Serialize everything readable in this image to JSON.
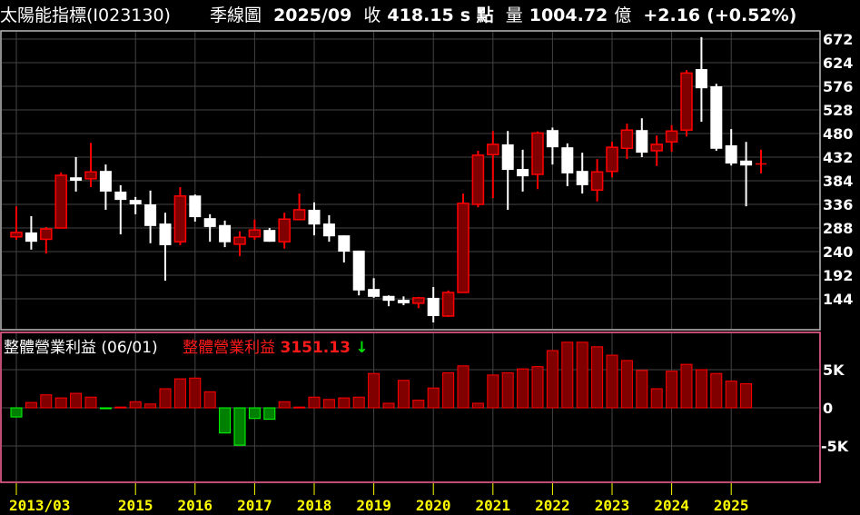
{
  "header": {
    "index_name": "太陽能指標(I023130)",
    "period_type": "季線圖",
    "date": "2025/09",
    "close_label": "收",
    "close_value": "418.15",
    "close_unit": "s 點",
    "volume_label": "量",
    "volume_value": "1004.72",
    "volume_unit": "億",
    "change": "+2.16",
    "change_pct": "(+0.52%)"
  },
  "sub_legend": {
    "title": "整體營業利益",
    "date": "(06/01)",
    "series_label": "整體營業利益",
    "series_value": "3151.13",
    "trend_icon": "arrow-down-icon"
  },
  "colors": {
    "background": "#000000",
    "up_border": "#ff0000",
    "up_fill": "#800000",
    "down": "#ffffff",
    "negative_border": "#00ff00",
    "negative_fill": "#008000",
    "grid": "#444444",
    "year_label": "#ffff00",
    "sub_border": "#ff6699"
  },
  "chart_data": [
    {
      "type": "candlestick",
      "period": "quarterly",
      "first_period": "2013/03",
      "last_period": "2025/09",
      "y_ticks": [
        672,
        624,
        576,
        528,
        480,
        432,
        384,
        336,
        288,
        240,
        192,
        144
      ],
      "ylim": [
        100,
        690
      ],
      "x_tick_labels": [
        "2013/03",
        "2015",
        "2016",
        "2017",
        "2018",
        "2019",
        "2020",
        "2021",
        "2022",
        "2023",
        "2024",
        "2025"
      ],
      "x_tick_indices": [
        0,
        8,
        12,
        16,
        20,
        24,
        28,
        32,
        36,
        40,
        44,
        48
      ],
      "grid": true,
      "ohlc": [
        [
          270,
          332,
          264,
          279
        ],
        [
          279,
          312,
          244,
          260
        ],
        [
          265,
          290,
          236,
          286
        ],
        [
          288,
          401,
          288,
          395
        ],
        [
          391,
          432,
          362,
          384
        ],
        [
          388,
          461,
          371,
          402
        ],
        [
          404,
          417,
          325,
          362
        ],
        [
          362,
          375,
          275,
          345
        ],
        [
          345,
          351,
          316,
          336
        ],
        [
          336,
          364,
          257,
          292
        ],
        [
          297,
          319,
          181,
          253
        ],
        [
          260,
          371,
          253,
          353
        ],
        [
          354,
          356,
          301,
          310
        ],
        [
          308,
          316,
          260,
          290
        ],
        [
          294,
          303,
          249,
          259
        ],
        [
          255,
          281,
          231,
          269
        ],
        [
          270,
          305,
          264,
          284
        ],
        [
          284,
          288,
          260,
          260
        ],
        [
          260,
          319,
          246,
          306
        ],
        [
          305,
          358,
          305,
          325
        ],
        [
          325,
          340,
          273,
          295
        ],
        [
          297,
          314,
          260,
          271
        ],
        [
          273,
          273,
          218,
          240
        ],
        [
          242,
          242,
          151,
          161
        ],
        [
          164,
          186,
          146,
          148
        ],
        [
          150,
          151,
          129,
          140
        ],
        [
          142,
          149,
          131,
          135
        ],
        [
          135,
          148,
          125,
          146
        ],
        [
          146,
          168,
          96,
          109
        ],
        [
          109,
          161,
          107,
          157
        ],
        [
          157,
          358,
          157,
          338
        ],
        [
          336,
          445,
          330,
          436
        ],
        [
          437,
          485,
          349,
          458
        ],
        [
          458,
          485,
          325,
          406
        ],
        [
          408,
          447,
          362,
          393
        ],
        [
          397,
          484,
          367,
          481
        ],
        [
          487,
          492,
          417,
          452
        ],
        [
          452,
          460,
          373,
          399
        ],
        [
          404,
          441,
          358,
          375
        ],
        [
          365,
          428,
          342,
          402
        ],
        [
          403,
          463,
          391,
          452
        ],
        [
          450,
          500,
          428,
          487
        ],
        [
          487,
          511,
          432,
          441
        ],
        [
          445,
          476,
          414,
          458
        ],
        [
          463,
          497,
          443,
          485
        ],
        [
          487,
          609,
          474,
          603
        ],
        [
          611,
          676,
          504,
          572
        ],
        [
          576,
          581,
          445,
          449
        ],
        [
          456,
          489,
          415,
          419
        ],
        [
          425,
          463,
          332,
          415
        ],
        [
          416,
          447,
          399,
          418.15
        ]
      ]
    },
    {
      "type": "bar",
      "series_name": "整體營業利益",
      "first_period": "2013/03",
      "unit": "K",
      "y_ticks": [
        "5K",
        "0",
        "-5K"
      ],
      "ylim": [
        -9500,
        10000
      ],
      "values": [
        -1.2,
        0.7,
        1.7,
        1.3,
        1.9,
        1.4,
        -0.1,
        0.1,
        0.8,
        0.5,
        2.5,
        3.8,
        3.9,
        2.1,
        -3.3,
        -4.9,
        -1.4,
        -1.5,
        0.8,
        0.1,
        1.4,
        1.1,
        1.3,
        1.4,
        4.5,
        0.6,
        3.6,
        1.0,
        2.6,
        4.6,
        5.5,
        0.6,
        4.3,
        4.6,
        5.1,
        5.4,
        7.5,
        8.6,
        8.6,
        8.0,
        6.9,
        6.2,
        4.9,
        2.5,
        4.8,
        5.7,
        5.0,
        4.5,
        3.5,
        3.15113
      ]
    }
  ]
}
